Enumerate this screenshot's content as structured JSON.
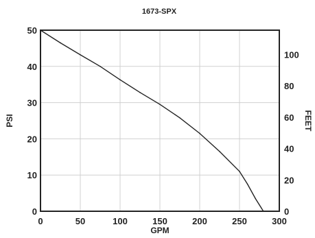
{
  "chart_data": {
    "type": "line",
    "title": "1673-SPX",
    "xlabel": "GPM",
    "ylabel": "PSI",
    "y2label": "FEET",
    "xlim": [
      0,
      300
    ],
    "ylim": [
      0,
      50
    ],
    "y2lim": [
      0,
      115.5
    ],
    "grid": true,
    "x_ticks": [
      "0",
      "50",
      "100",
      "150",
      "200",
      "250",
      "300"
    ],
    "y_ticks": [
      "0",
      "10",
      "20",
      "30",
      "40",
      "50"
    ],
    "y2_ticks": [
      "0",
      "20",
      "40",
      "60",
      "80",
      "100"
    ],
    "series": [
      {
        "x": [
          0,
          25,
          50,
          75,
          100,
          125,
          150,
          175,
          200,
          225,
          250,
          260,
          270,
          280
        ],
        "values": [
          50,
          46.5,
          43.2,
          40,
          36.3,
          32.8,
          29.5,
          25.8,
          21.5,
          16.5,
          11,
          7.5,
          3.5,
          0
        ]
      }
    ]
  }
}
